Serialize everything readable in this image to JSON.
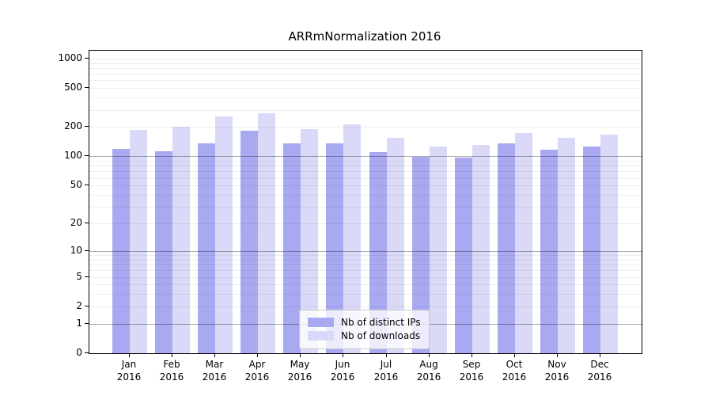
{
  "chart_data": {
    "type": "bar",
    "title": "ARRmNormalization 2016",
    "categories": [
      "Jan 2016",
      "Feb 2016",
      "Mar 2016",
      "Apr 2016",
      "May 2016",
      "Jun 2016",
      "Jul 2016",
      "Aug 2016",
      "Sep 2016",
      "Oct 2016",
      "Nov 2016",
      "Dec 2016"
    ],
    "series": [
      {
        "name": "Nb of distinct IPs",
        "color": "#a9a9f1",
        "values": [
          120,
          113,
          136,
          184,
          135,
          135,
          110,
          99,
          97,
          135,
          118,
          127
        ]
      },
      {
        "name": "Nb of downloads",
        "color": "#dadaf8",
        "values": [
          187,
          201,
          257,
          277,
          191,
          215,
          154,
          126,
          130,
          175,
          156,
          168
        ]
      }
    ],
    "xlabel": "",
    "ylabel": "",
    "y_scale": "log10(1+x)",
    "y_ticks": [
      0,
      1,
      2,
      5,
      10,
      20,
      50,
      100,
      200,
      500,
      1000
    ],
    "ylim": [
      0,
      1100
    ],
    "grid": true,
    "legend_position": "lower-center-inside"
  },
  "style": {
    "bar_ips": "#a9a9f1",
    "bar_downloads": "#dadaf8",
    "grid_minor": "rgba(0,0,0,0.065)",
    "grid_decade": "rgba(0,0,0,0.33)",
    "spine": "#000000",
    "legend_border": "#c9c9c9",
    "legend_bg": "rgba(255,255,255,0.78)"
  }
}
